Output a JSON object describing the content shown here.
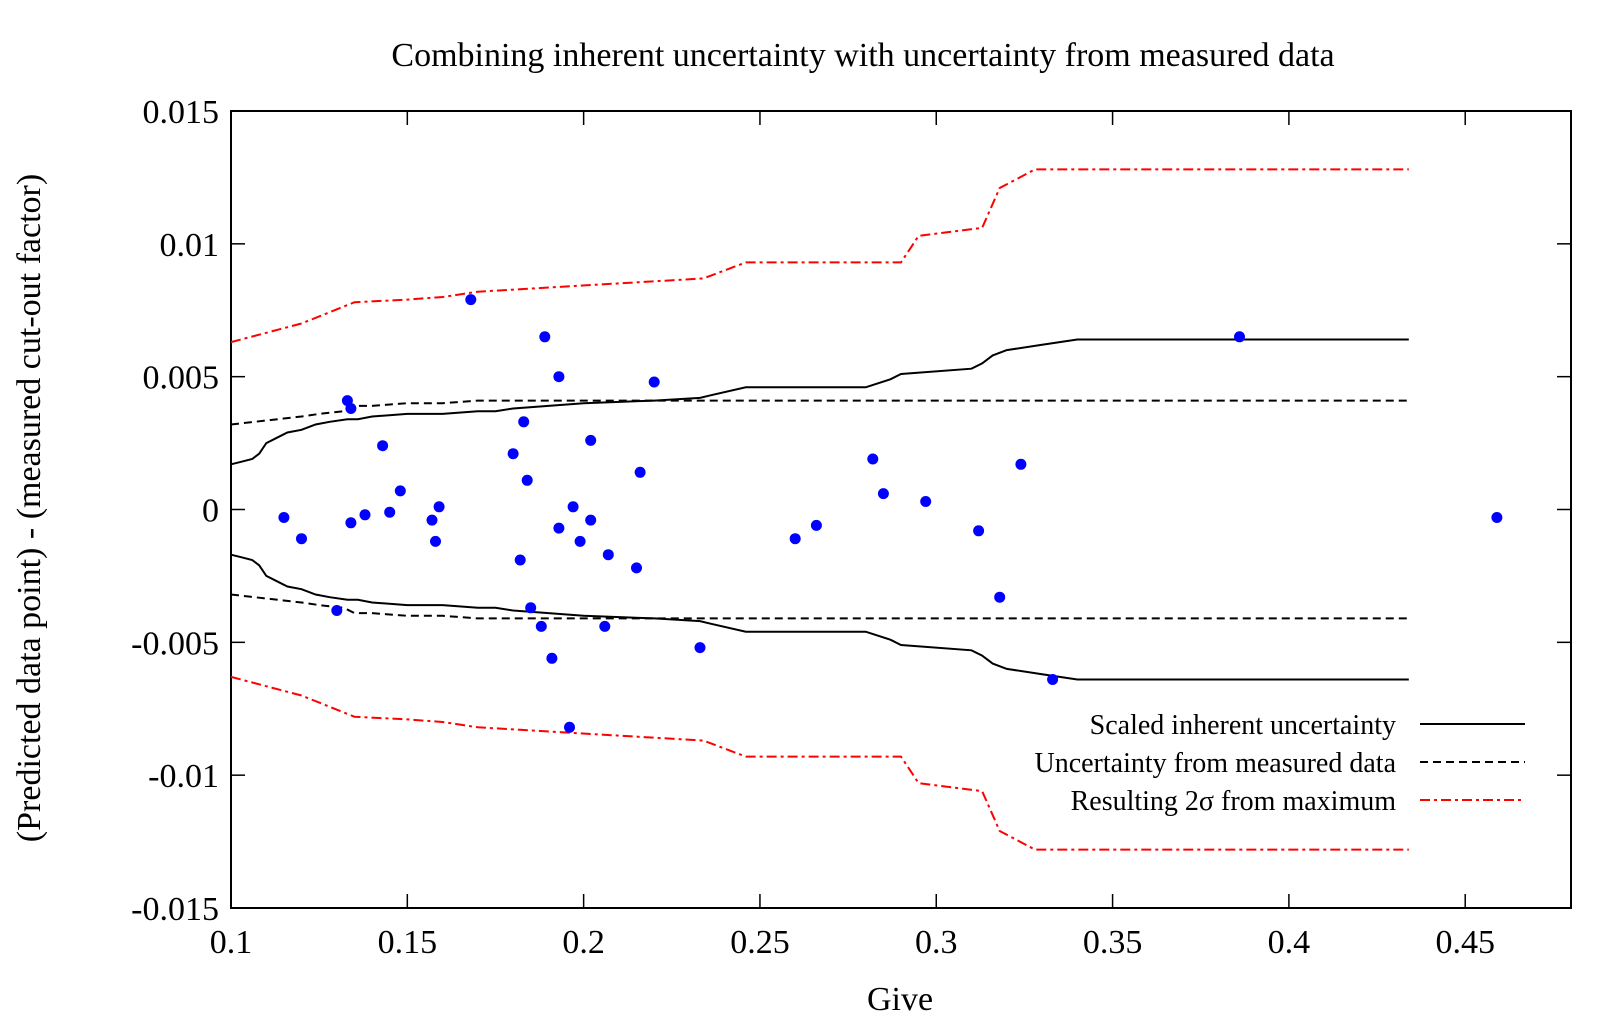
{
  "chart_data": {
    "type": "scatter",
    "title": "Combining inherent uncertainty with uncertainty from measured data",
    "xlabel": "Give",
    "ylabel": "(Predicted data point) - (measured cut-out factor)",
    "xlim": [
      0.1,
      0.48
    ],
    "ylim": [
      -0.015,
      0.015
    ],
    "xticks": [
      0.1,
      0.15,
      0.2,
      0.25,
      0.3,
      0.35,
      0.4,
      0.45
    ],
    "xtick_labels": [
      "0.1",
      "0.15",
      "0.2",
      "0.25",
      "0.3",
      "0.35",
      "0.4",
      "0.45"
    ],
    "yticks": [
      0.015,
      0.01,
      0.005,
      0,
      -0.005,
      -0.01,
      -0.015
    ],
    "ytick_labels": [
      "0.015",
      "0.01",
      "0.005",
      "0",
      "-0.005",
      "-0.01",
      "-0.015"
    ],
    "grid": false,
    "legend_position": "bottom-right",
    "colors": {
      "points": "#0000ff",
      "inherent": "#000000",
      "measured": "#000000",
      "resulting": "#ff0000"
    },
    "points": [
      [
        0.115,
        -0.0003
      ],
      [
        0.12,
        -0.0011
      ],
      [
        0.13,
        -0.0038
      ],
      [
        0.133,
        0.0041
      ],
      [
        0.134,
        0.0038
      ],
      [
        0.134,
        -0.0005
      ],
      [
        0.138,
        -0.0002
      ],
      [
        0.143,
        0.0024
      ],
      [
        0.145,
        -0.0001
      ],
      [
        0.148,
        0.0007
      ],
      [
        0.157,
        -0.0004
      ],
      [
        0.158,
        -0.0012
      ],
      [
        0.159,
        0.0001
      ],
      [
        0.168,
        0.0079
      ],
      [
        0.18,
        0.0021
      ],
      [
        0.182,
        -0.0019
      ],
      [
        0.183,
        0.0033
      ],
      [
        0.184,
        0.0011
      ],
      [
        0.185,
        -0.0037
      ],
      [
        0.188,
        -0.0044
      ],
      [
        0.189,
        0.0065
      ],
      [
        0.191,
        -0.0056
      ],
      [
        0.193,
        -0.0007
      ],
      [
        0.193,
        0.005
      ],
      [
        0.196,
        -0.0082
      ],
      [
        0.197,
        0.0001
      ],
      [
        0.199,
        -0.0012
      ],
      [
        0.202,
        0.0026
      ],
      [
        0.202,
        -0.0004
      ],
      [
        0.206,
        -0.0044
      ],
      [
        0.207,
        -0.0017
      ],
      [
        0.215,
        -0.0022
      ],
      [
        0.216,
        0.0014
      ],
      [
        0.22,
        0.0048
      ],
      [
        0.233,
        -0.0052
      ],
      [
        0.26,
        -0.0011
      ],
      [
        0.266,
        -0.0006
      ],
      [
        0.282,
        0.0019
      ],
      [
        0.285,
        0.0006
      ],
      [
        0.297,
        0.0003
      ],
      [
        0.312,
        -0.0008
      ],
      [
        0.318,
        -0.0033
      ],
      [
        0.324,
        0.0017
      ],
      [
        0.333,
        -0.0064
      ],
      [
        0.386,
        0.0065
      ],
      [
        0.459,
        -0.0003
      ]
    ],
    "series": [
      {
        "name": "Scaled inherent uncertainty",
        "style": "solid",
        "x": [
          0.1,
          0.103,
          0.106,
          0.108,
          0.11,
          0.113,
          0.116,
          0.12,
          0.124,
          0.128,
          0.133,
          0.136,
          0.14,
          0.15,
          0.16,
          0.17,
          0.175,
          0.18,
          0.19,
          0.2,
          0.22,
          0.233,
          0.236,
          0.246,
          0.25,
          0.27,
          0.28,
          0.287,
          0.29,
          0.31,
          0.313,
          0.316,
          0.32,
          0.33,
          0.34,
          0.35,
          0.434
        ],
        "y": [
          0.0017,
          0.0018,
          0.0019,
          0.0021,
          0.0025,
          0.0027,
          0.0029,
          0.003,
          0.0032,
          0.0033,
          0.0034,
          0.0034,
          0.0035,
          0.0036,
          0.0036,
          0.0037,
          0.0037,
          0.0038,
          0.0039,
          0.004,
          0.0041,
          0.0042,
          0.0043,
          0.0046,
          0.0046,
          0.0046,
          0.0046,
          0.0049,
          0.0051,
          0.0053,
          0.0055,
          0.0058,
          0.006,
          0.0062,
          0.0064,
          0.0064,
          0.0064
        ]
      },
      {
        "name": "Uncertainty from measured data",
        "style": "dashed",
        "x": [
          0.1,
          0.12,
          0.125,
          0.132,
          0.135,
          0.14,
          0.15,
          0.16,
          0.17,
          0.434
        ],
        "y": [
          0.0032,
          0.0035,
          0.0036,
          0.0037,
          0.0039,
          0.0039,
          0.004,
          0.004,
          0.0041,
          0.0041
        ]
      },
      {
        "name": "Resulting 2σ from maximum",
        "style": "dashdot",
        "x": [
          0.1,
          0.12,
          0.135,
          0.15,
          0.16,
          0.17,
          0.234,
          0.246,
          0.29,
          0.295,
          0.313,
          0.318,
          0.328,
          0.434
        ],
        "y": [
          0.0063,
          0.007,
          0.0078,
          0.0079,
          0.008,
          0.0082,
          0.0087,
          0.0093,
          0.0093,
          0.0103,
          0.0106,
          0.0121,
          0.0128,
          0.0128
        ]
      }
    ]
  }
}
